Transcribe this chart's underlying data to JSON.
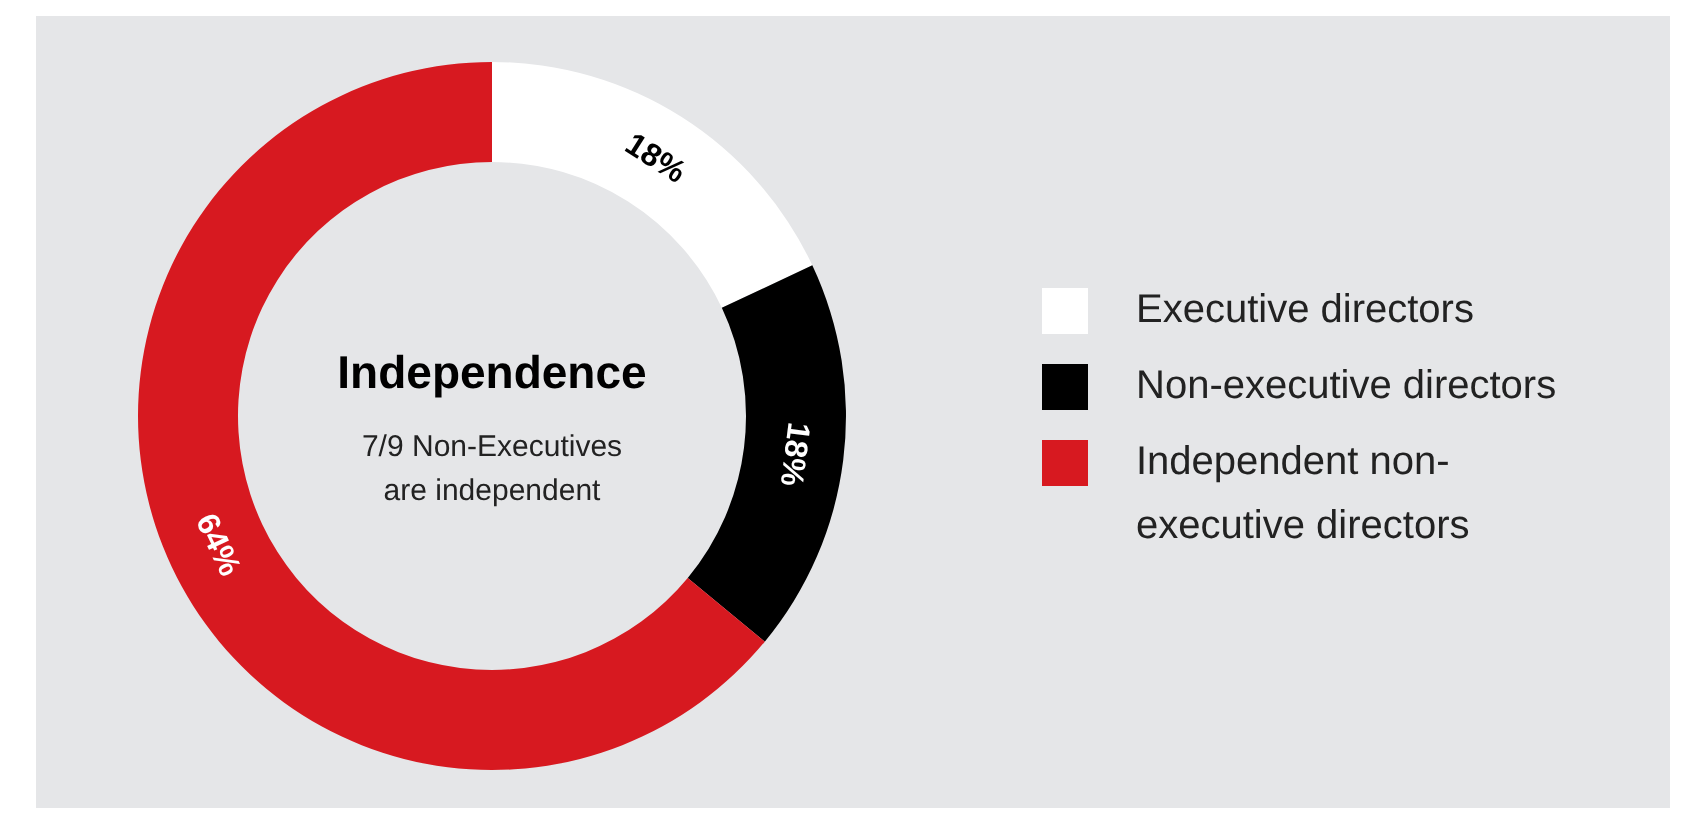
{
  "chart_data": {
    "type": "donut",
    "title": "Independence",
    "subtitle": "7/9 Non-Executives are independent",
    "categories": [
      "Executive directors",
      "Non-executive directors",
      "Independent non-executive directors"
    ],
    "values": [
      18,
      18,
      64
    ],
    "colors": [
      "#ffffff",
      "#000000",
      "#d71920"
    ],
    "value_labels": [
      "18%",
      "18%",
      "64%"
    ],
    "legend": "right"
  }
}
